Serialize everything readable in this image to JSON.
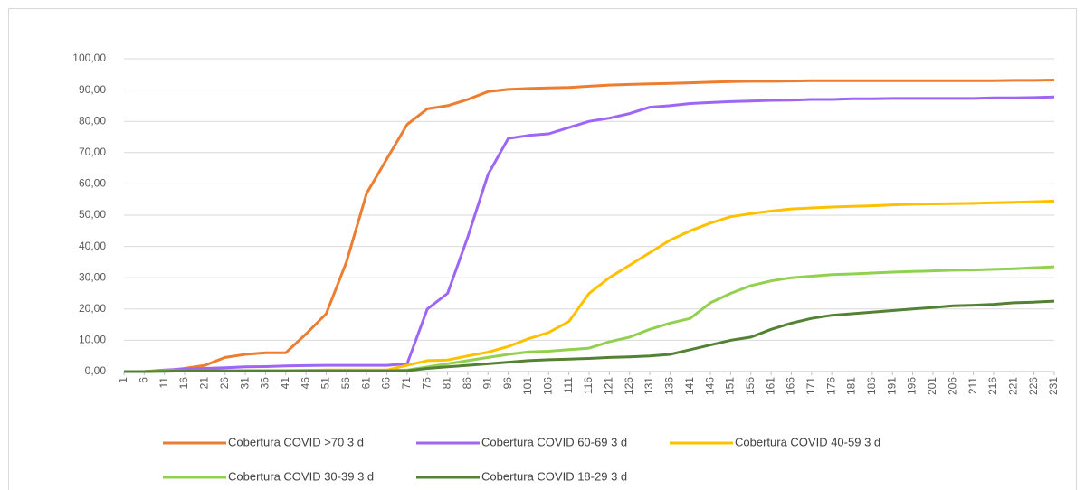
{
  "chart_data": {
    "type": "line",
    "x": [
      1,
      6,
      11,
      16,
      21,
      26,
      31,
      36,
      41,
      46,
      51,
      56,
      61,
      66,
      71,
      76,
      81,
      86,
      91,
      96,
      101,
      106,
      111,
      116,
      121,
      126,
      131,
      136,
      141,
      146,
      151,
      156,
      161,
      166,
      171,
      176,
      181,
      186,
      191,
      196,
      201,
      206,
      211,
      216,
      221,
      226,
      231
    ],
    "xlim": [
      1,
      231
    ],
    "xticks": [
      1,
      6,
      11,
      16,
      21,
      26,
      31,
      36,
      41,
      46,
      51,
      56,
      61,
      66,
      71,
      76,
      81,
      86,
      91,
      96,
      101,
      106,
      111,
      116,
      121,
      126,
      131,
      136,
      141,
      146,
      151,
      156,
      161,
      166,
      171,
      176,
      181,
      186,
      191,
      196,
      201,
      206,
      211,
      216,
      221,
      226,
      231
    ],
    "ylim": [
      0,
      100
    ],
    "yticks": [
      {
        "value": 0,
        "label": "0,00"
      },
      {
        "value": 10,
        "label": "10,00"
      },
      {
        "value": 20,
        "label": "20,00"
      },
      {
        "value": 30,
        "label": "30,00"
      },
      {
        "value": 40,
        "label": "40,00"
      },
      {
        "value": 50,
        "label": "50,00"
      },
      {
        "value": 60,
        "label": "60,00"
      },
      {
        "value": 70,
        "label": "70,00"
      },
      {
        "value": 80,
        "label": "80,00"
      },
      {
        "value": 90,
        "label": "90,00"
      },
      {
        "value": 100,
        "label": "100,00"
      }
    ],
    "grid": true,
    "legend": "bottom",
    "series": [
      {
        "name": "Cobertura COVID >70 3 d",
        "color": "#ed7d31",
        "values": [
          0,
          0,
          0.3,
          1,
          2,
          4.5,
          5.5,
          6,
          6,
          12,
          18.5,
          35,
          57,
          68,
          79,
          84,
          85,
          87,
          89.5,
          90.2,
          90.5,
          90.7,
          90.8,
          91.2,
          91.6,
          91.8,
          92,
          92.1,
          92.3,
          92.5,
          92.7,
          92.8,
          92.8,
          92.9,
          93,
          93,
          93,
          93,
          93,
          93,
          93,
          93,
          93,
          93,
          93.1,
          93.1,
          93.2
        ]
      },
      {
        "name": "Cobertura COVID 60-69 3 d",
        "color": "#9e66f5",
        "values": [
          0,
          0,
          0.5,
          0.8,
          1,
          1.2,
          1.5,
          1.6,
          1.8,
          1.9,
          2,
          2,
          2,
          2,
          2.5,
          20,
          25,
          43,
          63,
          74.5,
          75.5,
          76,
          78,
          80,
          81,
          82.5,
          84.5,
          85,
          85.7,
          86,
          86.3,
          86.5,
          86.7,
          86.8,
          87,
          87,
          87.2,
          87.2,
          87.3,
          87.3,
          87.3,
          87.3,
          87.3,
          87.5,
          87.5,
          87.6,
          87.8
        ]
      },
      {
        "name": "Cobertura COVID 40-59 3 d",
        "color": "#ffc000",
        "values": [
          0,
          0,
          0.2,
          0.3,
          0.3,
          0.3,
          0.3,
          0.3,
          0.3,
          0.4,
          0.5,
          0.5,
          0.5,
          0.5,
          2,
          3.5,
          3.7,
          5,
          6.2,
          8,
          10.5,
          12.5,
          16,
          25,
          30,
          34,
          38,
          42,
          45,
          47.5,
          49.5,
          50.5,
          51.3,
          52,
          52.3,
          52.6,
          52.8,
          53,
          53.3,
          53.5,
          53.6,
          53.7,
          53.8,
          54,
          54.1,
          54.3,
          54.5
        ]
      },
      {
        "name": "Cobertura COVID 30-39 3 d",
        "color": "#92d050",
        "values": [
          0,
          0,
          0.2,
          0.3,
          0.3,
          0.3,
          0.3,
          0.3,
          0.3,
          0.3,
          0.3,
          0.3,
          0.3,
          0.3,
          0.5,
          1.5,
          2.5,
          3.5,
          4.5,
          5.5,
          6.3,
          6.5,
          7,
          7.5,
          9.5,
          11,
          13.5,
          15.5,
          17,
          22,
          25,
          27.5,
          29,
          30,
          30.5,
          31,
          31.2,
          31.5,
          31.8,
          32,
          32.2,
          32.4,
          32.5,
          32.7,
          32.9,
          33.2,
          33.5
        ]
      },
      {
        "name": "Cobertura COVID 18-29 3 d",
        "color": "#548235",
        "values": [
          0,
          0,
          0.1,
          0.2,
          0.2,
          0.2,
          0.2,
          0.2,
          0.2,
          0.2,
          0.2,
          0.2,
          0.2,
          0.2,
          0.3,
          1,
          1.5,
          2,
          2.5,
          3,
          3.5,
          3.8,
          4,
          4.2,
          4.5,
          4.7,
          5,
          5.5,
          7,
          8.5,
          10,
          11,
          13.5,
          15.5,
          17,
          18,
          18.5,
          19,
          19.5,
          20,
          20.5,
          21,
          21.2,
          21.5,
          22,
          22.2,
          22.5
        ]
      }
    ]
  }
}
